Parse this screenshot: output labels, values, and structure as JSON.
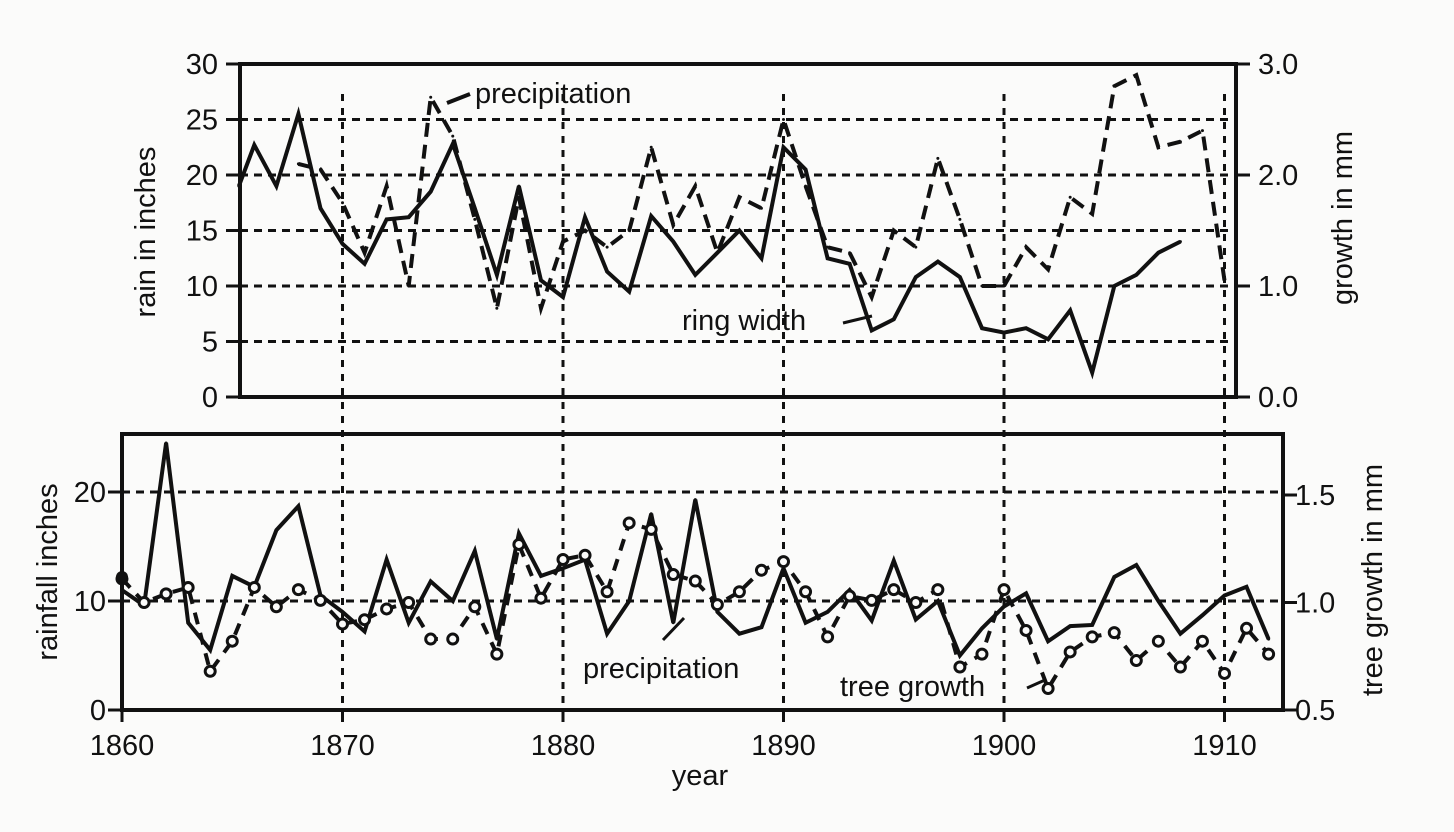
{
  "chart_data": [
    {
      "type": "line",
      "panel": "top",
      "ylabel": "rain in inches",
      "y2label": "growth in mm",
      "ylim": [
        0,
        30
      ],
      "y2lim": [
        0.0,
        3.0
      ],
      "xlim": [
        1865.3,
        1910.5
      ],
      "yticks": [
        "0",
        "5",
        "10",
        "15",
        "20",
        "25",
        "30"
      ],
      "y2ticks": [
        "0.0",
        "1.0",
        "2.0",
        "3.0"
      ],
      "grid": true,
      "annotations": {
        "precipitation": "precipitation",
        "ring_width": "ring width"
      },
      "series": [
        {
          "name": "precipitation",
          "axis": "left",
          "style": "dashed",
          "x": [
            1868,
            1869,
            1870,
            1871,
            1872,
            1873,
            1874,
            1875,
            1876,
            1877,
            1878,
            1879,
            1880,
            1881,
            1882,
            1883,
            1884,
            1885,
            1886,
            1887,
            1888,
            1889,
            1890,
            1891,
            1892,
            1893,
            1894,
            1895,
            1896,
            1897,
            1898,
            1899,
            1900,
            1901,
            1902,
            1903,
            1904,
            1905,
            1906,
            1907,
            1908,
            1909,
            1910
          ],
          "values": [
            21,
            20.5,
            17.5,
            13,
            19,
            10,
            27,
            23.5,
            16,
            8,
            18,
            8,
            14,
            15,
            13.5,
            15,
            22.5,
            15.5,
            19,
            13,
            18,
            17,
            25,
            19,
            13.5,
            13,
            9,
            15,
            13.5,
            21.5,
            16,
            10,
            10,
            13.5,
            11.5,
            18,
            16.5,
            28,
            29,
            22.5,
            23,
            24,
            10.5
          ]
        },
        {
          "name": "ring width",
          "axis": "right",
          "style": "solid",
          "x": [
            1865.3,
            1866,
            1867,
            1868,
            1869,
            1870,
            1871,
            1872,
            1873,
            1874,
            1875,
            1876,
            1877,
            1878,
            1879,
            1880,
            1881,
            1882,
            1883,
            1884,
            1885,
            1886,
            1887,
            1888,
            1889,
            1890,
            1891,
            1892,
            1893,
            1894,
            1895,
            1896,
            1897,
            1898,
            1899,
            1900,
            1901,
            1902,
            1903,
            1904,
            1905,
            1906,
            1907,
            1908
          ],
          "values": [
            1.9,
            2.27,
            1.9,
            2.55,
            1.7,
            1.38,
            1.2,
            1.6,
            1.62,
            1.85,
            2.28,
            1.7,
            1.1,
            1.9,
            1.05,
            0.9,
            1.62,
            1.13,
            0.95,
            1.63,
            1.4,
            1.1,
            1.3,
            1.5,
            1.25,
            2.25,
            2.05,
            1.25,
            1.2,
            0.6,
            0.7,
            1.08,
            1.22,
            1.08,
            0.62,
            0.58,
            0.62,
            0.52,
            0.78,
            0.22,
            1.0,
            1.1,
            1.3,
            1.4
          ]
        }
      ]
    },
    {
      "type": "line",
      "panel": "bottom",
      "xlabel": "year",
      "ylabel": "rainfall inches",
      "y2label": "tree growth in mm",
      "ylim": [
        0,
        25
      ],
      "y2lim": [
        0.5,
        1.75
      ],
      "xlim": [
        1860,
        1912.4
      ],
      "xticks": [
        "1860",
        "1870",
        "1880",
        "1890",
        "1900",
        "1910"
      ],
      "yticks": [
        "0",
        "10",
        "20"
      ],
      "y2ticks": [
        "0.5",
        "1.0",
        "1.5"
      ],
      "grid": true,
      "annotations": {
        "precipitation": "precipitation",
        "tree_growth": "tree growth"
      },
      "series": [
        {
          "name": "precipitation",
          "axis": "left",
          "style": "solid",
          "x": [
            1860,
            1861,
            1862,
            1863,
            1864,
            1865,
            1866,
            1867,
            1868,
            1869,
            1870,
            1871,
            1872,
            1873,
            1874,
            1875,
            1876,
            1877,
            1878,
            1879,
            1880,
            1881,
            1882,
            1883,
            1884,
            1885,
            1886,
            1887,
            1888,
            1889,
            1890,
            1891,
            1892,
            1893,
            1894,
            1895,
            1896,
            1897,
            1898,
            1899,
            1900,
            1901,
            1902,
            1903,
            1904,
            1905,
            1906,
            1907,
            1908,
            1909,
            1910,
            1911,
            1912
          ],
          "values": [
            11,
            9.6,
            24.5,
            8,
            5.5,
            12.3,
            11.3,
            16.5,
            18.7,
            10.5,
            9,
            7.2,
            13.8,
            8,
            11.8,
            10,
            14.6,
            6.5,
            16.2,
            12.3,
            13,
            13.8,
            7,
            10,
            18,
            8,
            19.3,
            9,
            7,
            7.6,
            13,
            8,
            9,
            11,
            8.2,
            13.7,
            8.3,
            10,
            5,
            7.5,
            9.5,
            10.7,
            6.3,
            7.7,
            7.8,
            12.2,
            13.3,
            10,
            7,
            8.7,
            10.5,
            11.3,
            6.5
          ]
        },
        {
          "name": "tree growth",
          "axis": "right",
          "style": "dashed-circles",
          "x": [
            1860,
            1861,
            1862,
            1863,
            1864,
            1865,
            1866,
            1867,
            1868,
            1869,
            1870,
            1871,
            1872,
            1873,
            1874,
            1875,
            1876,
            1877,
            1878,
            1879,
            1880,
            1881,
            1882,
            1883,
            1884,
            1885,
            1886,
            1887,
            1888,
            1889,
            1890,
            1891,
            1892,
            1893,
            1894,
            1895,
            1896,
            1897,
            1898,
            1899,
            1900,
            1901,
            1902,
            1903,
            1904,
            1905,
            1906,
            1907,
            1908,
            1909,
            1910,
            1911,
            1912
          ],
          "values": [
            1.11,
            1.0,
            1.04,
            1.07,
            0.68,
            0.82,
            1.07,
            0.98,
            1.06,
            1.01,
            0.9,
            0.92,
            0.97,
            1.0,
            0.83,
            0.83,
            0.98,
            0.76,
            1.27,
            1.02,
            1.2,
            1.22,
            1.05,
            1.37,
            1.34,
            1.13,
            1.1,
            0.99,
            1.05,
            1.15,
            1.19,
            1.05,
            0.84,
            1.03,
            1.01,
            1.06,
            1.0,
            1.06,
            0.7,
            0.76,
            1.06,
            0.87,
            0.6,
            0.77,
            0.84,
            0.86,
            0.73,
            0.82,
            0.7,
            0.82,
            0.67,
            0.88,
            0.76
          ]
        }
      ]
    }
  ],
  "colors": {
    "ink": "#111111",
    "paper": "#fbfbfa"
  }
}
